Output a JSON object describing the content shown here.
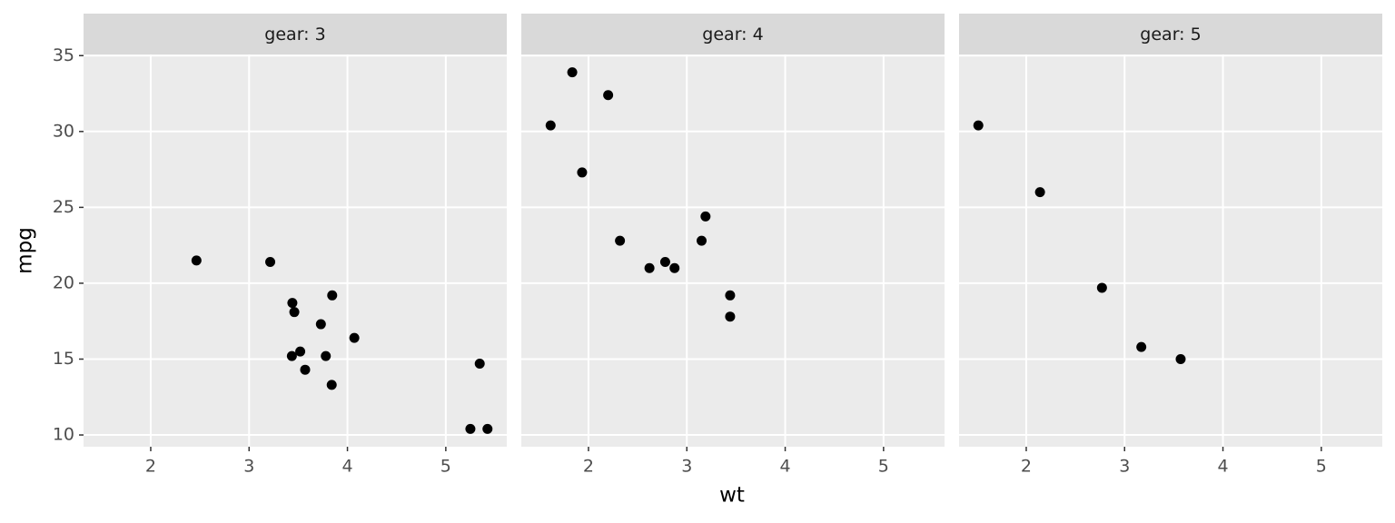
{
  "x_label": "wt",
  "y_label": "mpg",
  "chart_data": [
    {
      "type": "scatter",
      "title": "gear: 3",
      "color": "#000000",
      "grid": true,
      "x": [
        3.215,
        3.44,
        3.46,
        3.57,
        4.07,
        3.73,
        3.78,
        5.25,
        5.424,
        5.345,
        2.465,
        3.52,
        3.435,
        3.84,
        3.845
      ],
      "y": [
        21.4,
        18.7,
        18.1,
        14.3,
        16.4,
        17.3,
        15.2,
        10.4,
        10.4,
        14.7,
        21.5,
        15.5,
        15.2,
        13.3,
        19.2
      ],
      "xlim": [
        1.317,
        5.62
      ],
      "ylim": [
        9.225,
        35.075
      ],
      "xticks": [
        2,
        3,
        4,
        5
      ],
      "yticks": [
        10,
        15,
        20,
        25,
        30,
        35
      ]
    },
    {
      "type": "scatter",
      "title": "gear: 4",
      "color": "#000000",
      "grid": true,
      "x": [
        2.62,
        2.875,
        2.32,
        3.19,
        3.15,
        3.44,
        3.44,
        2.2,
        1.615,
        1.835,
        1.935,
        2.78
      ],
      "y": [
        21.0,
        21.0,
        22.8,
        24.4,
        22.8,
        19.2,
        17.8,
        32.4,
        30.4,
        33.9,
        27.3,
        21.4
      ],
      "xlim": [
        1.317,
        5.62
      ],
      "ylim": [
        9.225,
        35.075
      ],
      "xticks": [
        2,
        3,
        4,
        5
      ],
      "yticks": [
        10,
        15,
        20,
        25,
        30,
        35
      ]
    },
    {
      "type": "scatter",
      "title": "gear: 5",
      "color": "#000000",
      "grid": true,
      "x": [
        2.14,
        1.513,
        3.17,
        2.77,
        3.57
      ],
      "y": [
        26.0,
        30.4,
        15.8,
        19.7,
        15.0
      ],
      "xlim": [
        1.317,
        5.62
      ],
      "ylim": [
        9.225,
        35.075
      ],
      "xticks": [
        2,
        3,
        4,
        5
      ],
      "yticks": [
        10,
        15,
        20,
        25,
        30,
        35
      ]
    }
  ]
}
